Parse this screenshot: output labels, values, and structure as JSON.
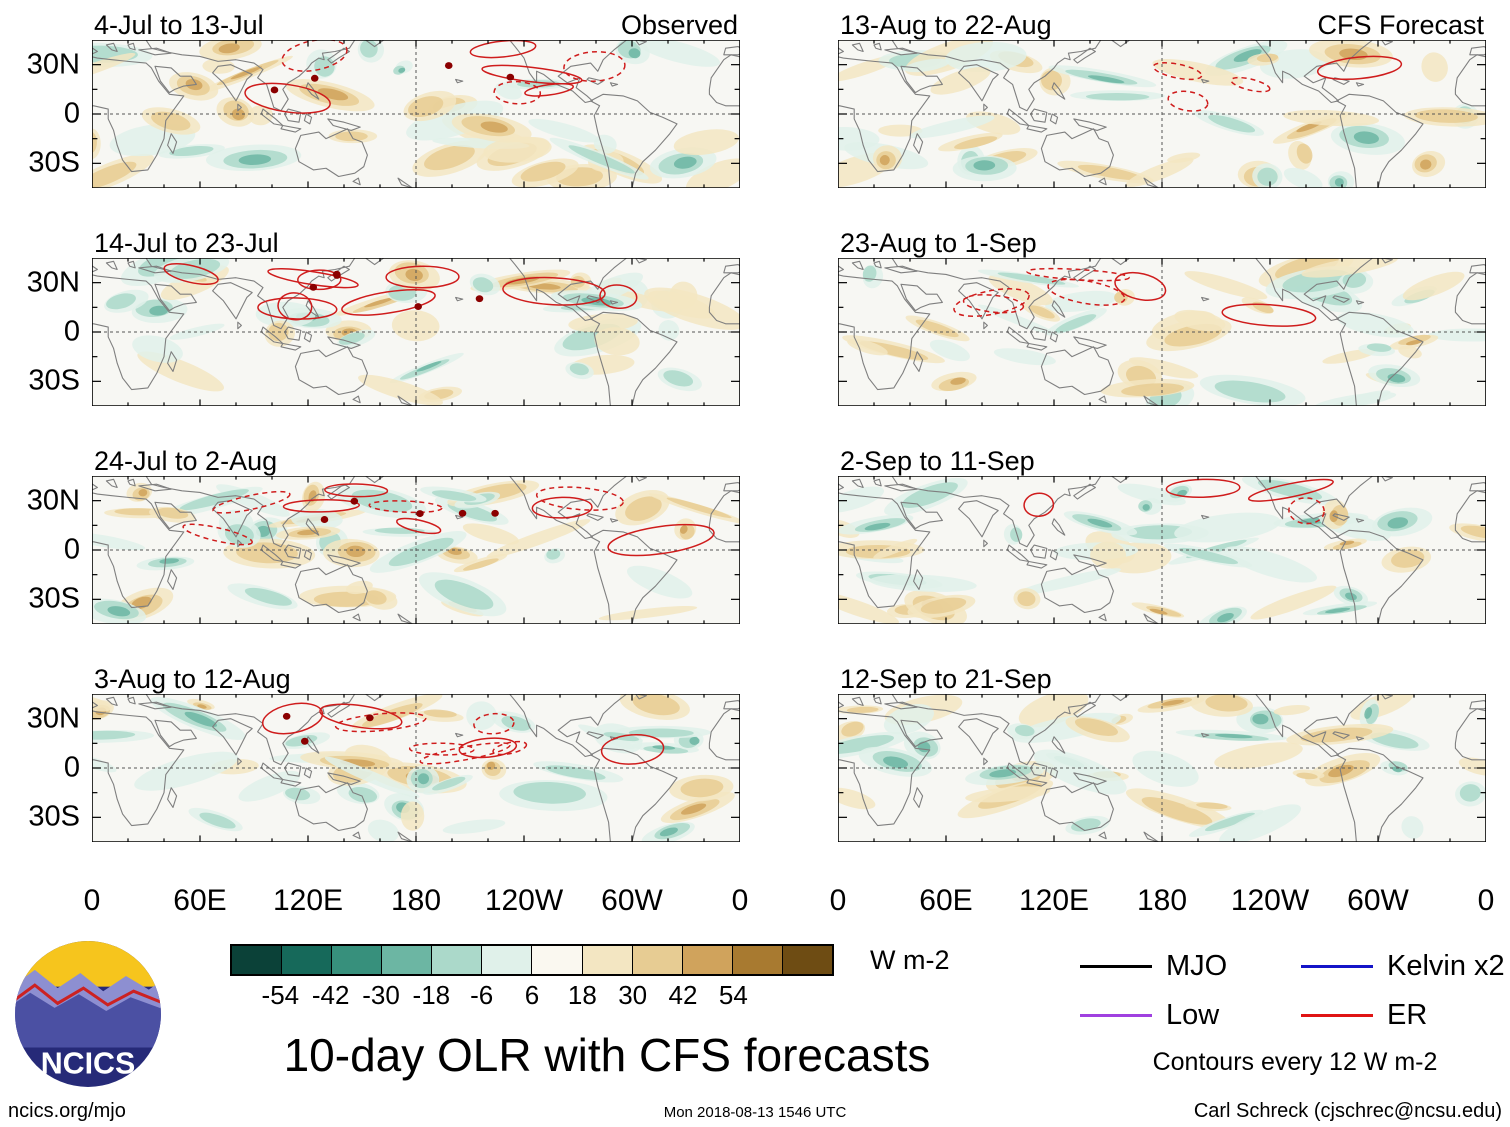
{
  "branding": {
    "logo_text": "NCICS"
  },
  "footer": {
    "site": "ncics.org/mjo",
    "timestamp": "Mon 2018-08-13 1546 UTC",
    "credit": "Carl Schreck (cjschrec@ncsu.edu)"
  },
  "chart_data": {
    "type": "heatmap",
    "title": "10-day OLR with CFS forecasts",
    "columns": [
      {
        "header": "Observed",
        "panels": [
          "4-Jul to 13-Jul",
          "14-Jul to 23-Jul",
          "24-Jul to 2-Aug",
          "3-Aug to 12-Aug"
        ]
      },
      {
        "header": "CFS Forecast",
        "panels": [
          "13-Aug to 22-Aug",
          "23-Aug to 1-Sep",
          "2-Sep to 11-Sep",
          "12-Sep to 21-Sep"
        ]
      }
    ],
    "x_ticks": [
      "0",
      "60E",
      "120E",
      "180",
      "120W",
      "60W",
      "0"
    ],
    "y_ticks": [
      "30N",
      "0",
      "30S"
    ],
    "x_range_deg": [
      0,
      360
    ],
    "y_range_deg": [
      45,
      -45
    ],
    "colorbar": {
      "tick_labels": [
        "-54",
        "-42",
        "-30",
        "-18",
        "-6",
        "6",
        "18",
        "30",
        "42",
        "54"
      ],
      "units": "W m-2",
      "colors": [
        "#0b4138",
        "#16695a",
        "#37907c",
        "#6cb6a3",
        "#abd9ca",
        "#e0f1ea",
        "#faf8f0",
        "#f3e6c2",
        "#e7cc93",
        "#d0a35c",
        "#a87a30",
        "#6e4c13"
      ]
    },
    "legend": {
      "entries": [
        {
          "label": "MJO",
          "color": "#000000"
        },
        {
          "label": "Kelvin x2",
          "color": "#1414c8"
        },
        {
          "label": "Low",
          "color": "#a040e0"
        },
        {
          "label": "ER",
          "color": "#e01414"
        }
      ],
      "note": "Contours every 12 W m-2"
    }
  }
}
